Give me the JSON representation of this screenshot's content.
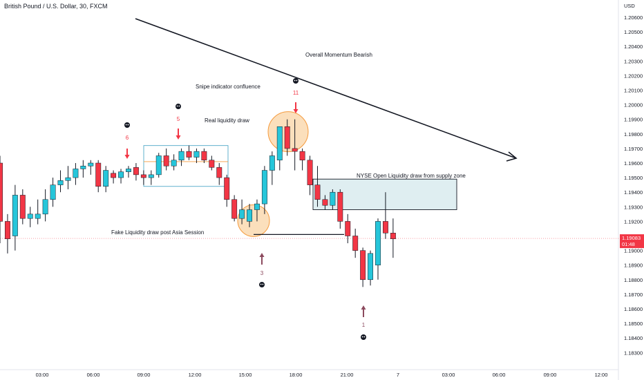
{
  "header": {
    "title": "British Pound / U.S. Dollar, 30, FXCM"
  },
  "price_label": {
    "value": "1.19083",
    "countdown": "01:48",
    "color": "#f23645"
  },
  "chart_data": {
    "type": "candlestick",
    "title": "British Pound / U.S. Dollar, 30, FXCM",
    "currency": "USD",
    "y_ticks": [
      "1.20600",
      "1.20500",
      "1.20400",
      "1.20300",
      "1.20200",
      "1.20100",
      "1.20000",
      "1.19900",
      "1.19800",
      "1.19700",
      "1.19600",
      "1.19500",
      "1.19400",
      "1.19300",
      "1.19200",
      "1.19100",
      "1.19000",
      "1.18900",
      "1.18800",
      "1.18700",
      "1.18600",
      "1.18500",
      "1.18400",
      "1.18300"
    ],
    "x_ticks": [
      "03:00",
      "06:00",
      "09:00",
      "12:00",
      "15:00",
      "18:00",
      "21:00",
      "7",
      "03:00",
      "06:00",
      "09:00",
      "12:00"
    ],
    "bullish_color": "#22ab94",
    "bullish_edge_color": "#26c6da",
    "bearish_color": "#f23645",
    "candles": [
      {
        "o": 1.196,
        "h": 1.1965,
        "l": 1.1905,
        "c": 1.192
      },
      {
        "o": 1.192,
        "h": 1.1925,
        "l": 1.1898,
        "c": 1.1908
      },
      {
        "o": 1.191,
        "h": 1.1945,
        "l": 1.19,
        "c": 1.1938
      },
      {
        "o": 1.1938,
        "h": 1.1942,
        "l": 1.1918,
        "c": 1.1922
      },
      {
        "o": 1.1922,
        "h": 1.193,
        "l": 1.1916,
        "c": 1.1925
      },
      {
        "o": 1.1922,
        "h": 1.1935,
        "l": 1.1918,
        "c": 1.1925
      },
      {
        "o": 1.1925,
        "h": 1.1942,
        "l": 1.192,
        "c": 1.1935
      },
      {
        "o": 1.1935,
        "h": 1.195,
        "l": 1.193,
        "c": 1.1945
      },
      {
        "o": 1.1945,
        "h": 1.1955,
        "l": 1.194,
        "c": 1.1948
      },
      {
        "o": 1.1948,
        "h": 1.1958,
        "l": 1.1942,
        "c": 1.195
      },
      {
        "o": 1.195,
        "h": 1.196,
        "l": 1.1945,
        "c": 1.1956
      },
      {
        "o": 1.1956,
        "h": 1.1962,
        "l": 1.195,
        "c": 1.1958
      },
      {
        "o": 1.1958,
        "h": 1.1962,
        "l": 1.1952,
        "c": 1.196
      },
      {
        "o": 1.196,
        "h": 1.1962,
        "l": 1.194,
        "c": 1.1944
      },
      {
        "o": 1.1944,
        "h": 1.1958,
        "l": 1.194,
        "c": 1.1955
      },
      {
        "o": 1.1953,
        "h": 1.1955,
        "l": 1.1946,
        "c": 1.195
      },
      {
        "o": 1.195,
        "h": 1.1956,
        "l": 1.1946,
        "c": 1.1954
      },
      {
        "o": 1.1954,
        "h": 1.1958,
        "l": 1.195,
        "c": 1.1956
      },
      {
        "o": 1.1957,
        "h": 1.196,
        "l": 1.1948,
        "c": 1.1952
      },
      {
        "o": 1.1952,
        "h": 1.1955,
        "l": 1.1945,
        "c": 1.195
      },
      {
        "o": 1.195,
        "h": 1.1955,
        "l": 1.1945,
        "c": 1.1952
      },
      {
        "o": 1.1952,
        "h": 1.1967,
        "l": 1.195,
        "c": 1.1965
      },
      {
        "o": 1.1965,
        "h": 1.197,
        "l": 1.1955,
        "c": 1.1958
      },
      {
        "o": 1.1958,
        "h": 1.1966,
        "l": 1.1955,
        "c": 1.1962
      },
      {
        "o": 1.1962,
        "h": 1.197,
        "l": 1.1958,
        "c": 1.1968
      },
      {
        "o": 1.1968,
        "h": 1.1972,
        "l": 1.1962,
        "c": 1.1964
      },
      {
        "o": 1.1964,
        "h": 1.197,
        "l": 1.196,
        "c": 1.1968
      },
      {
        "o": 1.1968,
        "h": 1.197,
        "l": 1.196,
        "c": 1.1962
      },
      {
        "o": 1.1962,
        "h": 1.1965,
        "l": 1.1955,
        "c": 1.1957
      },
      {
        "o": 1.1957,
        "h": 1.196,
        "l": 1.1945,
        "c": 1.195
      },
      {
        "o": 1.195,
        "h": 1.1952,
        "l": 1.193,
        "c": 1.1935
      },
      {
        "o": 1.1935,
        "h": 1.1938,
        "l": 1.192,
        "c": 1.1922
      },
      {
        "o": 1.1922,
        "h": 1.1935,
        "l": 1.1918,
        "c": 1.1928
      },
      {
        "o": 1.192,
        "h": 1.1932,
        "l": 1.1916,
        "c": 1.1928
      },
      {
        "o": 1.1928,
        "h": 1.1935,
        "l": 1.192,
        "c": 1.1932
      },
      {
        "o": 1.1932,
        "h": 1.1958,
        "l": 1.1925,
        "c": 1.1955
      },
      {
        "o": 1.1955,
        "h": 1.1968,
        "l": 1.1945,
        "c": 1.1965
      },
      {
        "o": 1.1962,
        "h": 1.1985,
        "l": 1.1955,
        "c": 1.1985
      },
      {
        "o": 1.1985,
        "h": 1.199,
        "l": 1.1965,
        "c": 1.197
      },
      {
        "o": 1.197,
        "h": 1.199,
        "l": 1.1955,
        "c": 1.1968
      },
      {
        "o": 1.1968,
        "h": 1.197,
        "l": 1.1955,
        "c": 1.1962
      },
      {
        "o": 1.1962,
        "h": 1.1965,
        "l": 1.1938,
        "c": 1.1945
      },
      {
        "o": 1.1945,
        "h": 1.1958,
        "l": 1.193,
        "c": 1.1935
      },
      {
        "o": 1.1935,
        "h": 1.1938,
        "l": 1.1928,
        "c": 1.1931
      },
      {
        "o": 1.1931,
        "h": 1.1942,
        "l": 1.1928,
        "c": 1.194
      },
      {
        "o": 1.194,
        "h": 1.1942,
        "l": 1.1915,
        "c": 1.192
      },
      {
        "o": 1.192,
        "h": 1.1925,
        "l": 1.1905,
        "c": 1.191
      },
      {
        "o": 1.191,
        "h": 1.1915,
        "l": 1.1895,
        "c": 1.19
      },
      {
        "o": 1.19,
        "h": 1.1902,
        "l": 1.1875,
        "c": 1.188
      },
      {
        "o": 1.188,
        "h": 1.19,
        "l": 1.1876,
        "c": 1.1898
      },
      {
        "o": 1.189,
        "h": 1.1922,
        "l": 1.188,
        "c": 1.192
      },
      {
        "o": 1.192,
        "h": 1.194,
        "l": 1.1908,
        "c": 1.1912
      },
      {
        "o": 1.1912,
        "h": 1.1922,
        "l": 1.1895,
        "c": 1.1908
      }
    ],
    "price_line": 1.19083,
    "annotations": {
      "momentum": "Overall Momentum Bearish",
      "snipe": "Snipe indicator confluence",
      "real_liquidity": "Real liquidity draw",
      "nyse": "NYSE Open Liquidity draw from supply zone",
      "fake_liquidity": "Fake Liquidity draw post Asia Session",
      "signals": [
        {
          "label": "6",
          "candle": 11,
          "dir": "down",
          "color": "#f23645"
        },
        {
          "label": "5",
          "candle": 16,
          "dir": "down",
          "color": "#f23645"
        },
        {
          "label": "11",
          "candle": 39,
          "dir": "down",
          "color": "#f23645"
        },
        {
          "label": "3",
          "candle": 34,
          "dir": "up",
          "color": "#8c4a5e"
        },
        {
          "label": "1",
          "candle": 48,
          "dir": "up",
          "color": "#8c4a5e"
        }
      ]
    }
  }
}
